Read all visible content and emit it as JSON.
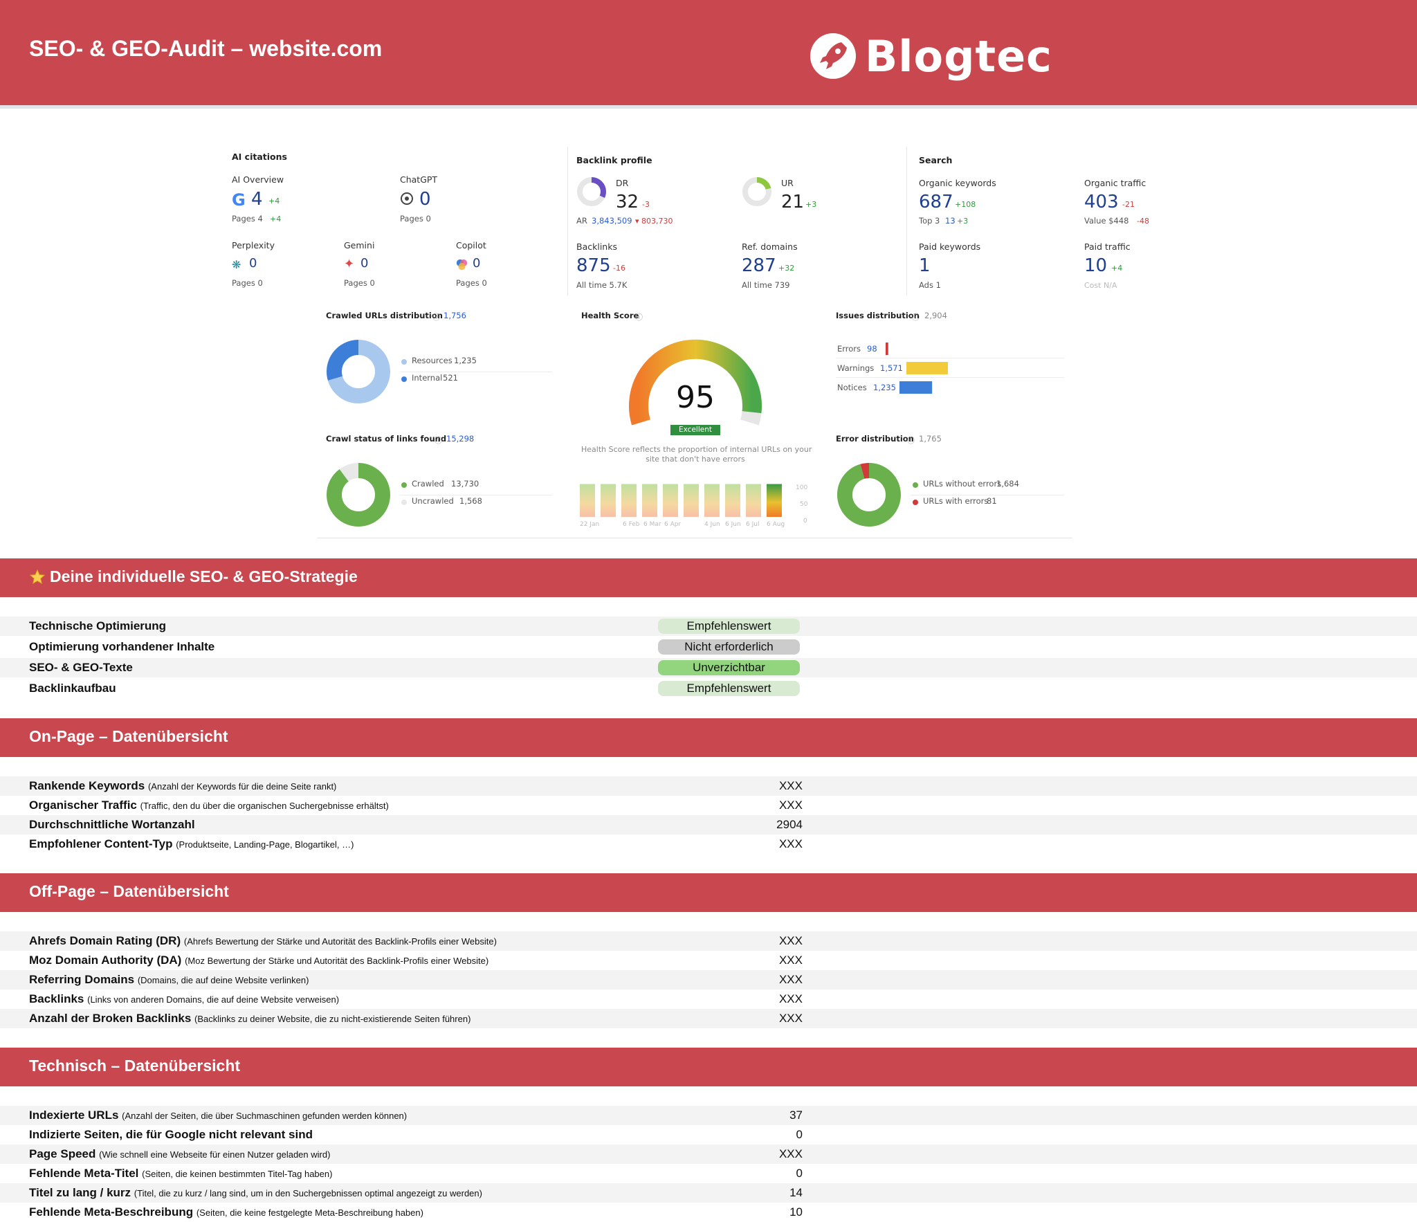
{
  "header": {
    "title": "SEO- & GEO-Audit – website.com",
    "logo_text": "Blogtec"
  },
  "dashboard": {
    "ai_citations": {
      "title": "AI citations",
      "ai_overview": {
        "label": "AI Overview",
        "value": "4",
        "delta": "+4",
        "pages": "Pages  4",
        "pages_delta": "+4"
      },
      "chatgpt": {
        "label": "ChatGPT",
        "value": "0",
        "pages": "Pages  0"
      },
      "perplexity": {
        "label": "Perplexity",
        "value": "0",
        "pages": "Pages  0"
      },
      "gemini": {
        "label": "Gemini",
        "value": "0",
        "pages": "Pages  0"
      },
      "copilot": {
        "label": "Copilot",
        "value": "0",
        "pages": "Pages  0"
      }
    },
    "backlink_profile": {
      "title": "Backlink profile",
      "dr": {
        "label": "DR",
        "value": "32",
        "delta": "-3",
        "ratio": 0.32
      },
      "ar_label": "AR",
      "ar_value": "3,843,509",
      "ar_delta": "▾ 803,730",
      "ur": {
        "label": "UR",
        "value": "21",
        "delta": "+3",
        "ratio": 0.21
      },
      "backlinks": {
        "label": "Backlinks",
        "value": "875",
        "delta": "-16",
        "sub": "All time  5.7K"
      },
      "ref_domains": {
        "label": "Ref. domains",
        "value": "287",
        "delta": "+32",
        "sub": "All time  739"
      }
    },
    "search": {
      "title": "Search",
      "organic_keywords": {
        "label": "Organic keywords",
        "value": "687",
        "delta": "+108",
        "sub_label": "Top 3",
        "sub_value": "13",
        "sub_delta": "+3"
      },
      "organic_traffic": {
        "label": "Organic traffic",
        "value": "403",
        "delta": "-21",
        "sub": "Value  $448",
        "sub_delta": "-48"
      },
      "paid_keywords": {
        "label": "Paid keywords",
        "value": "1",
        "sub": "Ads  1"
      },
      "paid_traffic": {
        "label": "Paid traffic",
        "value": "10",
        "delta": "+4",
        "sub": "Cost  N/A"
      }
    },
    "crawled_urls": {
      "title": "Crawled URLs distribution",
      "total": "1,756",
      "items": [
        {
          "label": "Resources",
          "value": "1,235",
          "count": 1235,
          "color": "#a9c8ee"
        },
        {
          "label": "Internal",
          "value": "521",
          "count": 521,
          "color": "#3d7fd8"
        }
      ]
    },
    "crawl_status": {
      "title": "Crawl status of links found",
      "total": "15,298",
      "items": [
        {
          "label": "Crawled",
          "value": "13,730",
          "count": 13730,
          "color": "#6ab04c"
        },
        {
          "label": "Uncrawled",
          "value": "1,568",
          "count": 1568,
          "color": "#e8e8e8"
        }
      ]
    },
    "health_score": {
      "title": "Health Score",
      "value": "95",
      "badge": "Excellent",
      "score": 95,
      "caption1": "Health Score reflects the proportion of internal URLs on your",
      "caption2": "site that don't have errors",
      "bars": [
        95,
        95,
        95,
        95,
        95,
        95,
        95,
        95,
        95,
        95
      ],
      "x_labels": [
        "22 Jan",
        "6 Feb",
        "6 Mar",
        "6 Apr",
        "4 Jun",
        "6 Jun",
        "6 Jul",
        "6 Aug"
      ],
      "y_labels": [
        "100",
        "50",
        "0"
      ]
    },
    "issues": {
      "title": "Issues distribution",
      "total": "2,904",
      "items": [
        {
          "label": "Errors",
          "value": "98",
          "count": 98,
          "color": "#d23a3a"
        },
        {
          "label": "Warnings",
          "value": "1,571",
          "count": 1571,
          "color": "#f2cb3a"
        },
        {
          "label": "Notices",
          "value": "1,235",
          "count": 1235,
          "color": "#3d7fd8"
        }
      ]
    },
    "error_distribution": {
      "title": "Error distribution",
      "total": "1,765",
      "items": [
        {
          "label": "URLs without errors",
          "value": "1,684",
          "count": 1684,
          "color": "#6ab04c"
        },
        {
          "label": "URLs with errors",
          "value": "81",
          "count": 81,
          "color": "#d23a3a"
        }
      ]
    }
  },
  "strategy": {
    "title": "Deine individuelle SEO- & GEO-Strategie",
    "rows": [
      {
        "label": "Technische Optimierung",
        "status": "Empfehlenswert"
      },
      {
        "label": "Optimierung vorhandener Inhalte",
        "status": "Nicht erforderlich"
      },
      {
        "label": "SEO- & GEO-Texte",
        "status": "Unverzichtbar"
      },
      {
        "label": "Backlinkaufbau",
        "status": "Empfehlenswert"
      }
    ]
  },
  "onpage": {
    "title": "On-Page – Datenübersicht",
    "rows": [
      {
        "label": "Rankende Keywords",
        "desc": "(Anzahl der Keywords für die deine Seite rankt)",
        "value": "XXX"
      },
      {
        "label": "Organischer Traffic",
        "desc": "(Traffic, den du über die organischen Suchergebnisse erhältst)",
        "value": "XXX"
      },
      {
        "label": "Durchschnittliche Wortanzahl",
        "desc": "",
        "value": "2904"
      },
      {
        "label": "Empfohlener Content-Typ",
        "desc": "(Produktseite, Landing-Page, Blogartikel, …)",
        "value": "XXX"
      }
    ]
  },
  "offpage": {
    "title": "Off-Page – Datenübersicht",
    "rows": [
      {
        "label": "Ahrefs Domain Rating (DR)",
        "desc": "(Ahrefs Bewertung der Stärke und Autorität des Backlink-Profils einer Website)",
        "value": "XXX"
      },
      {
        "label": "Moz Domain Authority (DA)",
        "desc": "(Moz Bewertung der Stärke und Autorität des Backlink-Profils einer Website)",
        "value": "XXX"
      },
      {
        "label": "Referring Domains",
        "desc": "(Domains, die auf deine Website verlinken)",
        "value": "XXX"
      },
      {
        "label": "Backlinks",
        "desc": "(Links von anderen Domains, die auf deine Website verweisen)",
        "value": "XXX"
      },
      {
        "label": "Anzahl der Broken Backlinks",
        "desc": "(Backlinks zu deiner Website, die zu nicht-existierende Seiten führen)",
        "value": "XXX"
      }
    ]
  },
  "technical": {
    "title": "Technisch – Datenübersicht",
    "rows": [
      {
        "label": "Indexierte URLs",
        "desc": "(Anzahl der Seiten, die über Suchmaschinen gefunden werden können)",
        "value": "37"
      },
      {
        "label": "Indizierte Seiten, die für Google nicht relevant sind",
        "desc": "",
        "value": "0"
      },
      {
        "label": "Page Speed",
        "desc": "(Wie schnell eine Webseite für einen Nutzer geladen wird)",
        "value": "XXX"
      },
      {
        "label": "Fehlende Meta-Titel",
        "desc": "(Seiten, die keinen bestimmten Titel-Tag haben)",
        "value": "0"
      },
      {
        "label": "Titel zu lang / kurz",
        "desc": "(Titel, die zu kurz / lang sind, um in den Suchergebnissen optimal angezeigt zu werden)",
        "value": "14"
      },
      {
        "label": "Fehlende Meta-Beschreibung",
        "desc": "(Seiten, die keine festgelegte Meta-Beschreibung haben)",
        "value": "10"
      }
    ]
  }
}
